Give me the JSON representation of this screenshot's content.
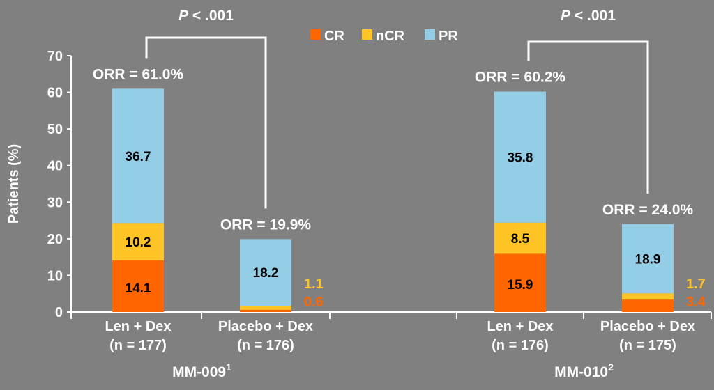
{
  "chart_data": {
    "type": "bar",
    "stacked": true,
    "ylabel": "Patients (%)",
    "ylim": [
      0,
      70
    ],
    "yticks": [
      0,
      10,
      20,
      30,
      40,
      50,
      60,
      70
    ],
    "grid": false,
    "legend_position": "top-center",
    "colors": {
      "CR": "#ff6600",
      "nCR": "#ffc425",
      "PR": "#93cde6",
      "text": "#ffffff",
      "label_dark": "#000000"
    },
    "series": [
      {
        "name": "CR",
        "values": [
          14.1,
          0.6,
          15.9,
          3.4
        ]
      },
      {
        "name": "nCR",
        "values": [
          10.2,
          1.1,
          8.5,
          1.7
        ]
      },
      {
        "name": "PR",
        "values": [
          36.7,
          18.2,
          35.8,
          18.9
        ]
      }
    ],
    "categories": [
      {
        "line1": "Len + Dex",
        "line2": "(n = 177)"
      },
      {
        "line1": "Placebo + Dex",
        "line2": "(n = 176)"
      },
      {
        "line1": "Len + Dex",
        "line2": "(n = 176)"
      },
      {
        "line1": "Placebo + Dex",
        "line2": "(n = 175)"
      }
    ],
    "orr_labels": [
      "ORR = 61.0%",
      "ORR = 19.9%",
      "ORR = 60.2%",
      "ORR = 24.0%"
    ],
    "groups": [
      {
        "name": "MM-009",
        "superscript": "1"
      },
      {
        "name": "MM-010",
        "superscript": "2"
      }
    ],
    "comparisons": [
      {
        "p_letter": "P",
        "p_value": " < .001"
      },
      {
        "p_letter": "P",
        "p_value": " < .001"
      }
    ]
  }
}
